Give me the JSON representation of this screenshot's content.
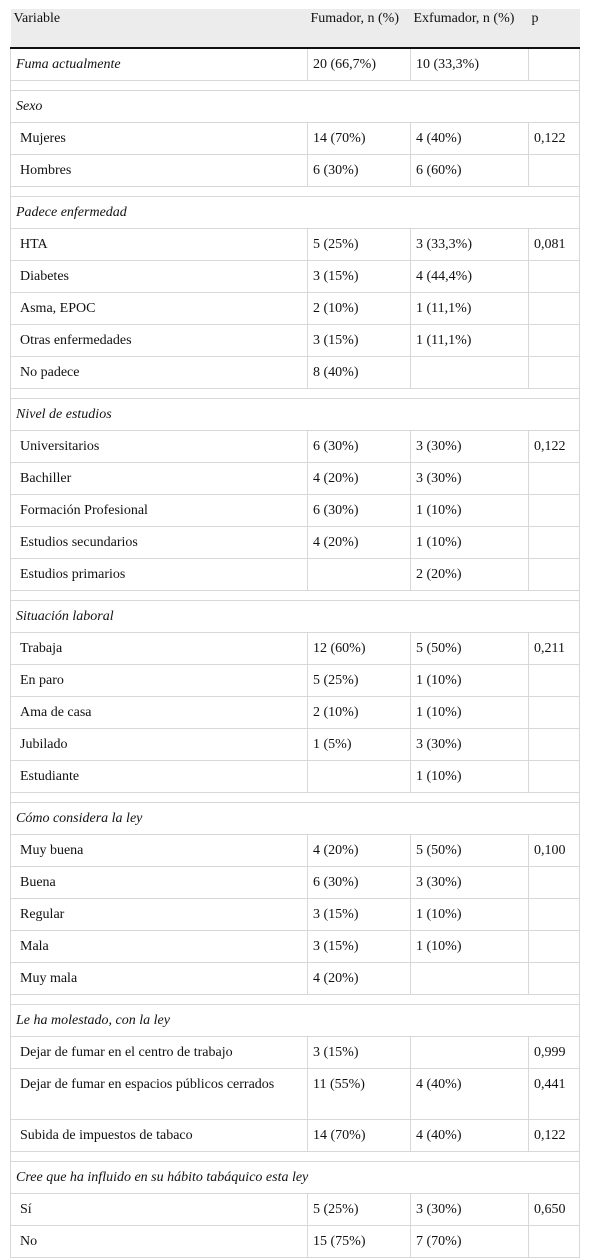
{
  "table": {
    "headers": {
      "variable": "Variable",
      "fumador": "Fumador, n (%)",
      "exfumador": "Exfumador, n (%)",
      "p": "p"
    },
    "first_row": {
      "label": "Fuma actualmente",
      "fumador": "20 (66,7%)",
      "exfumador": "10 (33,3%)",
      "p": ""
    },
    "sections": [
      {
        "title": "Sexo",
        "rows": [
          {
            "label": "Mujeres",
            "fumador": "14 (70%)",
            "exfumador": "4 (40%)",
            "p": "0,122"
          },
          {
            "label": "Hombres",
            "fumador": "6 (30%)",
            "exfumador": "6 (60%)",
            "p": ""
          }
        ]
      },
      {
        "title": "Padece enfermedad",
        "rows": [
          {
            "label": "HTA",
            "fumador": "5 (25%)",
            "exfumador": "3 (33,3%)",
            "p": "0,081"
          },
          {
            "label": "Diabetes",
            "fumador": "3 (15%)",
            "exfumador": "4 (44,4%)",
            "p": ""
          },
          {
            "label": "Asma, EPOC",
            "fumador": "2 (10%)",
            "exfumador": "1 (11,1%)",
            "p": ""
          },
          {
            "label": "Otras enfermedades",
            "fumador": "3 (15%)",
            "exfumador": "1 (11,1%)",
            "p": ""
          },
          {
            "label": "No padece",
            "fumador": "8 (40%)",
            "exfumador": "",
            "p": ""
          }
        ]
      },
      {
        "title": "Nivel de estudios",
        "rows": [
          {
            "label": "Universitarios",
            "fumador": "6 (30%)",
            "exfumador": "3 (30%)",
            "p": "0,122"
          },
          {
            "label": "Bachiller",
            "fumador": "4 (20%)",
            "exfumador": "3 (30%)",
            "p": ""
          },
          {
            "label": "Formación Profesional",
            "fumador": "6 (30%)",
            "exfumador": "1 (10%)",
            "p": ""
          },
          {
            "label": "Estudios secundarios",
            "fumador": "4 (20%)",
            "exfumador": "1 (10%)",
            "p": ""
          },
          {
            "label": "Estudios primarios",
            "fumador": "",
            "exfumador": "2 (20%)",
            "p": ""
          }
        ]
      },
      {
        "title": "Situación laboral",
        "rows": [
          {
            "label": "Trabaja",
            "fumador": "12 (60%)",
            "exfumador": "5 (50%)",
            "p": "0,211"
          },
          {
            "label": "En paro",
            "fumador": "5 (25%)",
            "exfumador": "1 (10%)",
            "p": ""
          },
          {
            "label": "Ama de casa",
            "fumador": "2 (10%)",
            "exfumador": "1 (10%)",
            "p": ""
          },
          {
            "label": "Jubilado",
            "fumador": "1 (5%)",
            "exfumador": "3 (30%)",
            "p": ""
          },
          {
            "label": "Estudiante",
            "fumador": "",
            "exfumador": "1 (10%)",
            "p": ""
          }
        ]
      },
      {
        "title": "Cómo considera la ley",
        "rows": [
          {
            "label": "Muy buena",
            "fumador": "4 (20%)",
            "exfumador": "5 (50%)",
            "p": "0,100"
          },
          {
            "label": "Buena",
            "fumador": "6 (30%)",
            "exfumador": "3 (30%)",
            "p": ""
          },
          {
            "label": "Regular",
            "fumador": "3 (15%)",
            "exfumador": "1 (10%)",
            "p": ""
          },
          {
            "label": "Mala",
            "fumador": "3 (15%)",
            "exfumador": "1 (10%)",
            "p": ""
          },
          {
            "label": "Muy mala",
            "fumador": "4 (20%)",
            "exfumador": "",
            "p": ""
          }
        ]
      },
      {
        "title": "Le ha molestado, con la ley",
        "rows": [
          {
            "label": "Dejar de fumar en el centro de trabajo",
            "fumador": "3 (15%)",
            "exfumador": "",
            "p": "0,999"
          },
          {
            "label": "Dejar de fumar en espacios públicos cerrados",
            "fumador": "11 (55%)",
            "exfumador": "4 (40%)",
            "p": "0,441",
            "tall": true
          },
          {
            "label": "Subida de impuestos de tabaco",
            "fumador": "14 (70%)",
            "exfumador": "4 (40%)",
            "p": "0,122"
          }
        ]
      },
      {
        "title": "Cree que ha influido en su hábito tabáquico esta ley",
        "rows": [
          {
            "label": "Sí",
            "fumador": "5 (25%)",
            "exfumador": "3 (30%)",
            "p": "0,650"
          },
          {
            "label": "No",
            "fumador": "15 (75%)",
            "exfumador": "7 (70%)",
            "p": ""
          }
        ]
      }
    ]
  }
}
